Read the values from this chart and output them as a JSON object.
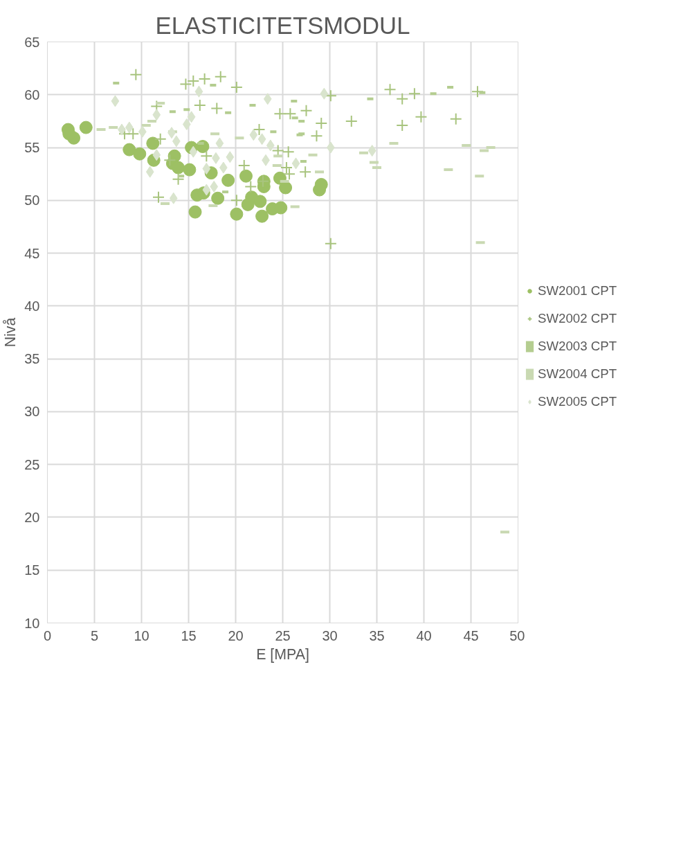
{
  "chart_data": {
    "type": "scatter",
    "title": "ELASTICITETSMODUL",
    "xlabel": "E [MPA]",
    "ylabel": "Nivå",
    "xlim": [
      0,
      50
    ],
    "xticks": [
      0,
      5,
      10,
      15,
      20,
      25,
      30,
      35,
      40,
      45,
      50
    ],
    "ylim": [
      10,
      65
    ],
    "yticks": [
      10,
      15,
      20,
      25,
      30,
      35,
      40,
      45,
      50,
      55,
      60,
      65
    ],
    "grid": true,
    "legend": "right",
    "series": [
      {
        "name": "SW2001 CPT",
        "color": "#9dc064",
        "marker": "circle",
        "x": [
          2.2,
          2.8,
          2.3,
          4.1,
          8.7,
          9.8,
          11.2,
          11.3,
          13.5,
          13.3,
          13.9,
          15.1,
          15.3,
          16.5,
          17.4,
          19.2,
          15.9,
          16.6,
          15.7,
          18.1,
          20.1,
          21.1,
          21.7,
          21.3,
          22.6,
          22.8,
          23.0,
          23.0,
          23.9,
          24.8,
          24.7,
          25.3,
          28.9,
          29.1
        ],
        "values": [
          56.7,
          55.9,
          56.3,
          56.9,
          54.8,
          54.4,
          55.4,
          53.8,
          54.2,
          53.5,
          53.1,
          52.9,
          55.0,
          55.1,
          52.6,
          51.9,
          50.5,
          50.7,
          48.9,
          50.2,
          48.7,
          52.3,
          50.3,
          49.6,
          49.9,
          48.5,
          51.3,
          51.8,
          49.2,
          49.3,
          52.1,
          51.2,
          51.0,
          51.5
        ]
      },
      {
        "name": "SW2002 CPT",
        "color": "#a8c47e",
        "marker": "cross",
        "x": [
          9.4,
          8.2,
          9.1,
          11.6,
          12.0,
          13.0,
          11.8,
          14.7,
          15.5,
          16.7,
          18.4,
          20.1,
          16.2,
          18.0,
          16.9,
          13.9,
          20.9,
          21.6,
          20.1,
          22.5,
          24.7,
          25.8,
          24.5,
          25.6,
          25.4,
          25.7,
          22.9,
          30.1,
          27.5,
          29.1,
          28.6,
          32.3,
          36.4,
          37.7,
          39.0,
          39.7,
          37.7,
          43.4,
          45.7,
          27.4,
          30.1
        ],
        "values": [
          61.9,
          56.3,
          56.3,
          58.9,
          55.8,
          53.8,
          50.3,
          61.0,
          61.3,
          61.5,
          61.7,
          60.7,
          59.0,
          58.7,
          54.2,
          52.0,
          53.3,
          51.3,
          50.0,
          56.7,
          58.2,
          58.2,
          54.7,
          54.6,
          53.1,
          52.5,
          51.8,
          59.9,
          58.5,
          57.3,
          56.1,
          57.5,
          60.5,
          59.6,
          60.1,
          57.9,
          57.1,
          57.7,
          60.3,
          52.7,
          45.9
        ]
      },
      {
        "name": "SW2003 CPT",
        "color": "#b4cd90",
        "x": [
          7.3,
          13.3,
          17.6,
          19.2,
          21.8,
          14.8,
          26.2,
          24.0,
          26.8,
          18.9,
          14.2,
          16.3,
          34.3,
          41.0,
          42.8,
          46.2,
          27.0,
          27.0,
          26.3,
          27.2
        ],
        "values": [
          61.1,
          58.4,
          60.9,
          58.3,
          59.0,
          58.6,
          59.4,
          56.5,
          56.2,
          50.8,
          52.3,
          55.4,
          59.6,
          60.1,
          60.7,
          60.2,
          57.5,
          56.3,
          57.8,
          53.7
        ]
      },
      {
        "name": "SW2004 CPT",
        "color": "#c9d9b2",
        "x": [
          5.7,
          7.0,
          11.1,
          10.5,
          12.0,
          12.5,
          17.8,
          20.4,
          24.5,
          24.4,
          25.2,
          26.3,
          17.6,
          13.3,
          28.2,
          28.9,
          36.8,
          34.7,
          35.0,
          33.6,
          42.6,
          44.5,
          46.4,
          47.1,
          45.9,
          46.0,
          48.6
        ],
        "values": [
          56.7,
          56.9,
          57.5,
          57.1,
          59.2,
          49.7,
          56.3,
          55.9,
          54.2,
          53.3,
          51.8,
          49.4,
          49.5,
          56.5,
          54.3,
          52.7,
          55.4,
          53.6,
          53.1,
          54.5,
          52.9,
          55.2,
          54.7,
          55.0,
          52.3,
          46.0,
          18.6
        ]
      },
      {
        "name": "SW2005 CPT",
        "color": "#d9e4cd",
        "marker": "diamond",
        "x": [
          7.2,
          11.6,
          7.9,
          8.7,
          10.1,
          13.2,
          11.6,
          10.9,
          13.4,
          16.1,
          15.3,
          14.8,
          13.7,
          15.5,
          18.3,
          19.4,
          17.9,
          18.7,
          16.9,
          16.9,
          17.7,
          23.4,
          21.9,
          22.8,
          23.7,
          23.2,
          26.4,
          29.4,
          30.1,
          34.5
        ],
        "values": [
          59.4,
          58.1,
          56.7,
          56.9,
          56.5,
          56.4,
          54.3,
          52.7,
          50.2,
          60.3,
          57.9,
          57.2,
          55.6,
          54.6,
          55.4,
          54.1,
          54.0,
          53.1,
          53.0,
          51.0,
          51.3,
          59.6,
          56.2,
          55.8,
          55.2,
          53.8,
          53.5,
          60.1,
          55.0,
          54.7
        ]
      }
    ]
  }
}
